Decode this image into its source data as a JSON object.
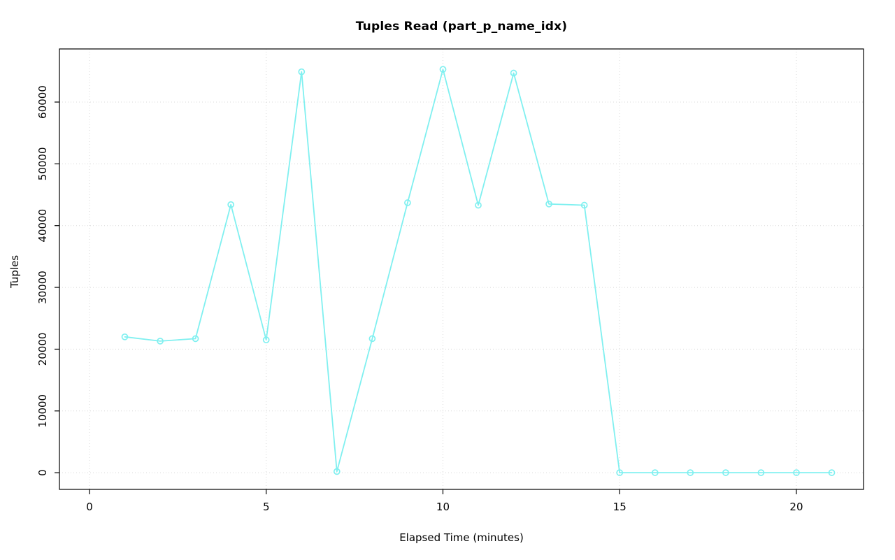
{
  "page": {
    "background": "#ffffff"
  },
  "chart_data": {
    "type": "line",
    "title": "Tuples Read (part_p_name_idx)",
    "xlabel": "Elapsed Time (minutes)",
    "ylabel": "Tuples",
    "x": [
      1,
      2,
      3,
      4,
      5,
      6,
      7,
      8,
      9,
      10,
      11,
      12,
      13,
      14,
      15,
      16,
      17,
      18,
      19,
      20,
      21
    ],
    "y": [
      22000,
      21300,
      21700,
      43400,
      21500,
      64900,
      200,
      21700,
      43700,
      65300,
      43300,
      64700,
      43500,
      43300,
      0,
      0,
      0,
      0,
      0,
      0,
      0
    ],
    "xlim": [
      -0.85,
      21.9
    ],
    "ylim": [
      -2700,
      68600
    ],
    "xticks": [
      0,
      5,
      10,
      15,
      20
    ],
    "yticks": [
      0,
      10000,
      20000,
      30000,
      40000,
      50000,
      60000
    ],
    "grid": true,
    "legend": "none",
    "marker": "open-circle",
    "line_color": "#80F0F0",
    "grid_color": "#D8D8D8",
    "axis_color": "#000000",
    "text_color": "#000000"
  }
}
